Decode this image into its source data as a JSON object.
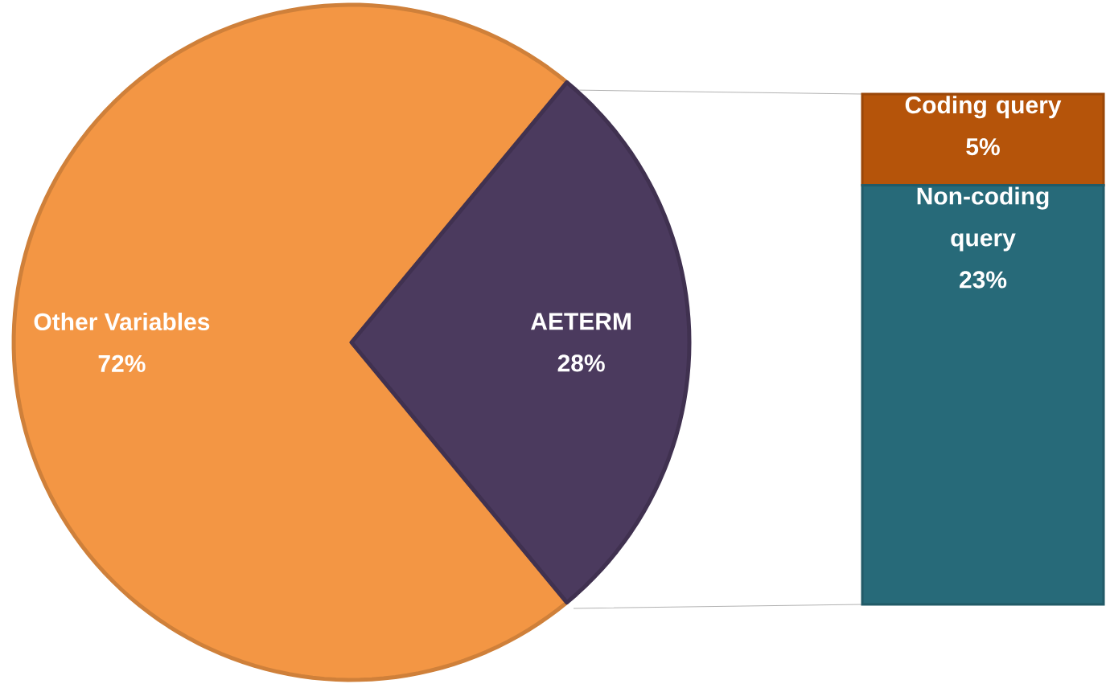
{
  "chart_data": [
    {
      "type": "pie",
      "categories": [
        "Other Variables",
        "AETERM"
      ],
      "values": [
        72,
        28
      ],
      "colors": [
        "#f39644",
        "#4b3a5e"
      ],
      "value_labels": [
        "72%",
        "28%"
      ]
    },
    {
      "type": "bar",
      "stacked": true,
      "categories": [
        null
      ],
      "series": [
        {
          "name": "Non-coding query",
          "color": "#276a79",
          "values": [
            23
          ],
          "value_labels": [
            "23%"
          ]
        },
        {
          "name": "Coding query",
          "color": "#b5540a",
          "values": [
            5
          ],
          "value_labels": [
            "5%"
          ]
        }
      ]
    }
  ]
}
